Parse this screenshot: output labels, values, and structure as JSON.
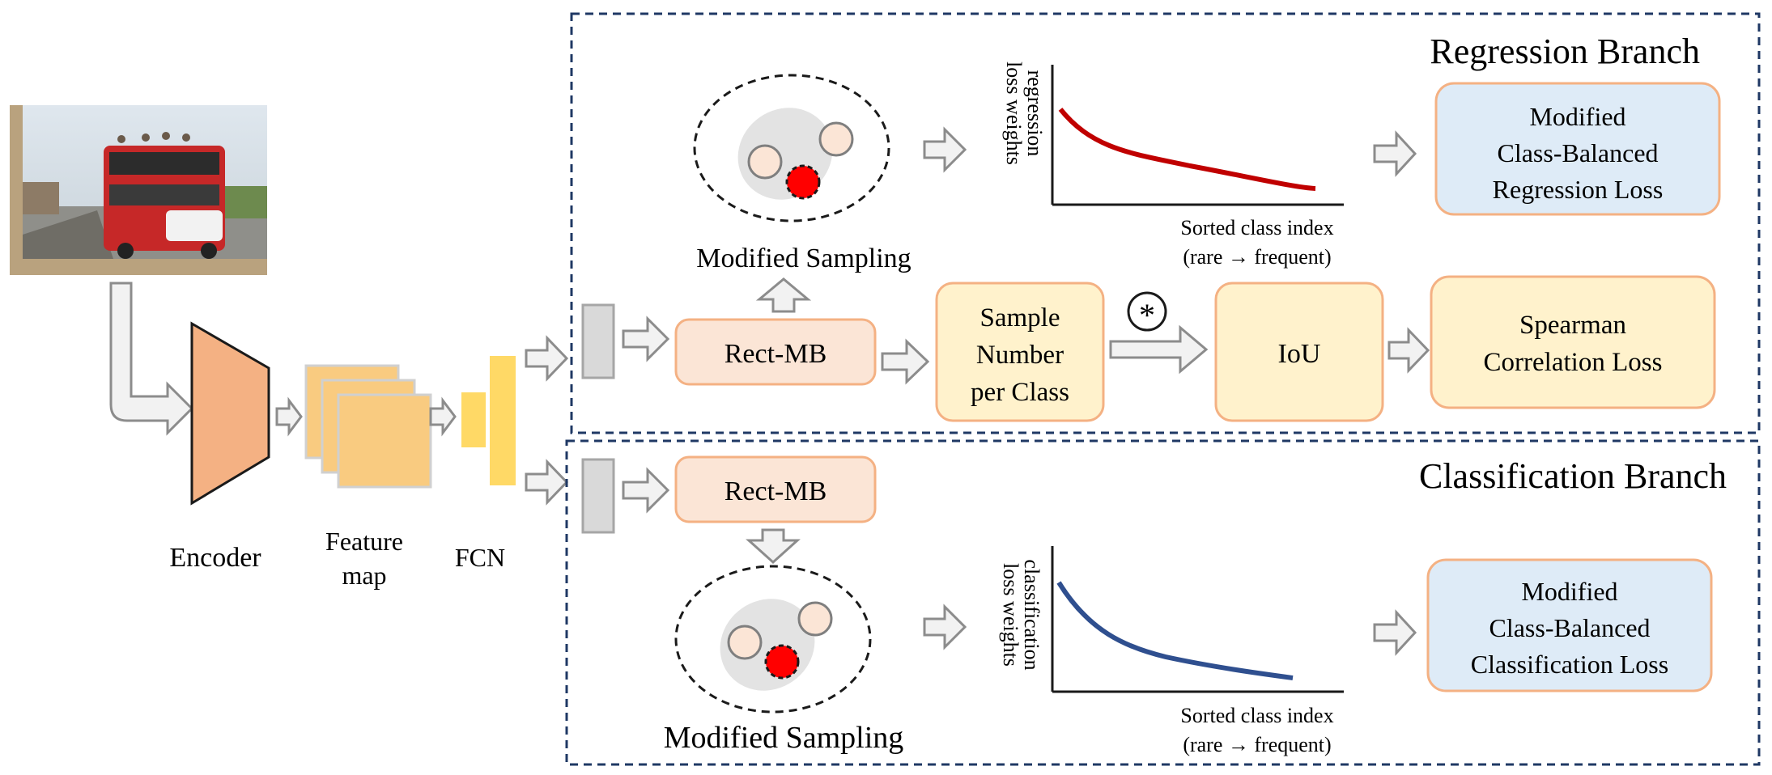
{
  "input_image": {
    "description_icon": "photo-icon"
  },
  "encoder": {
    "label": "Encoder"
  },
  "feature_map": {
    "label_line1": "Feature",
    "label_line2": "map"
  },
  "fcn": {
    "label": "FCN"
  },
  "regression_branch": {
    "title": "Regression Branch",
    "sampling_label": "Modified Sampling",
    "rect_mb": "Rect-MB",
    "sample_number": {
      "line1": "Sample",
      "line2": "Number",
      "line3": "per Class"
    },
    "conv_symbol": "*",
    "iou": "IoU",
    "spearman": {
      "line1": "Spearman",
      "line2": "Correlation Loss"
    },
    "loss_box": {
      "line1": "Modified",
      "line2": "Class-Balanced",
      "line3": "Regression Loss"
    },
    "plot": {
      "ylabel_line1": "regression",
      "ylabel_line2": "loss weights",
      "xlabel_line1": "Sorted class index",
      "xlabel_line2": "(rare → frequent)",
      "curve_color": "#c00000"
    }
  },
  "classification_branch": {
    "title": "Classification Branch",
    "sampling_label": "Modified Sampling",
    "rect_mb": "Rect-MB",
    "loss_box": {
      "line1": "Modified",
      "line2": "Class-Balanced",
      "line3": "Classification Loss"
    },
    "plot": {
      "ylabel_line1": "classification",
      "ylabel_line2": "loss weights",
      "xlabel_line1": "Sorted class index",
      "xlabel_line2": "(rare → frequent)",
      "curve_color": "#2f4f8f"
    }
  },
  "colors": {
    "branch_border": "#1f3864",
    "orange_box_fill": "#fbe5d6",
    "orange_box_stroke": "#f4b183",
    "yellow_box_fill": "#fff2cc",
    "yellow_box_stroke": "#f4b183",
    "blue_box_fill": "#deebf7",
    "encoder_fill": "#f4b183",
    "feature_fill": "#f9cb80",
    "fcn_fill": "#ffd966",
    "arrow_fill": "#f2f2f2",
    "arrow_stroke": "#8c8c8c",
    "red_dot": "#ff0000"
  }
}
